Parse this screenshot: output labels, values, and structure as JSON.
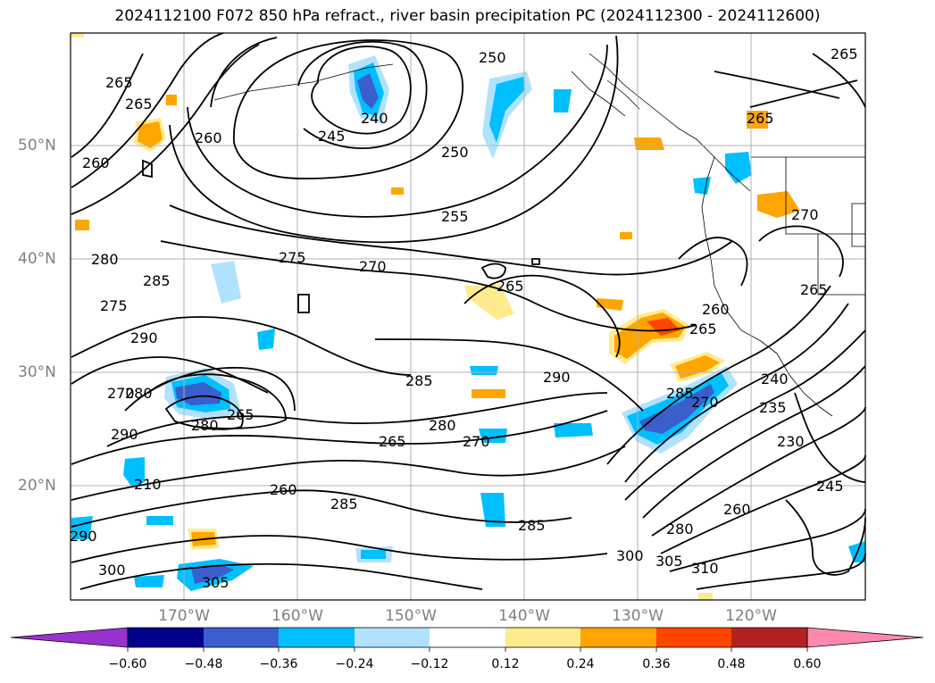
{
  "title": "2024112100 F072 850 hPa refract., river basin precipitation PC (2024112300 - 2024112600)",
  "latitude_labels": [
    "50°N",
    "40°N",
    "30°N",
    "20°N"
  ],
  "longitude_labels": [
    "170°W",
    "160°W",
    "150°W",
    "140°W",
    "130°W",
    "120°W"
  ],
  "contour_labels": [
    "265",
    "265",
    "260",
    "260",
    "250",
    "245",
    "240",
    "250",
    "255",
    "265",
    "265",
    "270",
    "275",
    "270",
    "280",
    "285",
    "275",
    "290",
    "265",
    "260",
    "265",
    "290",
    "285",
    "270",
    "280",
    "280",
    "280",
    "265",
    "270",
    "290",
    "265",
    "210",
    "260",
    "285",
    "270",
    "285",
    "235",
    "230",
    "240",
    "260",
    "285",
    "280",
    "300",
    "305",
    "310",
    "290",
    "300",
    "305",
    "245",
    "265"
  ],
  "colorbar": {
    "tick_labels": [
      "−0.60",
      "−0.48",
      "−0.36",
      "−0.24",
      "−0.12",
      "0.12",
      "0.24",
      "0.36",
      "0.48",
      "0.60"
    ],
    "colors": [
      "#9932cc",
      "#00008b",
      "#3a5fcd",
      "#00bfff",
      "#b0e2ff",
      "#ffffff",
      "#ffeb8f",
      "#ffa500",
      "#ff4500",
      "#b22222",
      "#ff89ac"
    ]
  },
  "colors": {
    "grid": "#b0b0b0",
    "axis_label": "#808080",
    "contour": "#000000"
  }
}
